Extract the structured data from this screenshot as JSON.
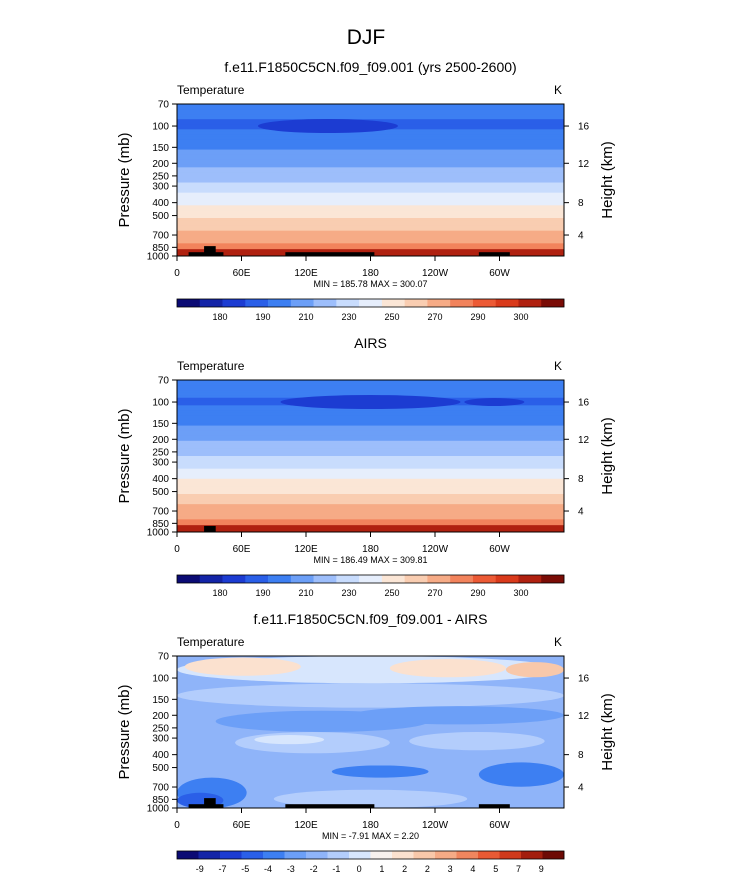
{
  "page": {
    "title": "DJF"
  },
  "colors": {
    "temp_scale": [
      "#0b0b74",
      "#1324a7",
      "#1c3cd2",
      "#2a5fe8",
      "#3d7ff2",
      "#6c9ff7",
      "#9dbefb",
      "#c8dcfd",
      "#e6eefc",
      "#fbe6d6",
      "#f9cdb1",
      "#f6ab86",
      "#f2835c",
      "#ec5a35",
      "#d93a1b",
      "#b02110",
      "#7a0c06"
    ],
    "diff_scale": [
      "#0b0b74",
      "#1324a7",
      "#1c3cd2",
      "#2a5fe8",
      "#3d7ff2",
      "#6c9ff7",
      "#8fb4f9",
      "#b3cdfc",
      "#d7e6fd",
      "#f7f1ee",
      "#fbe1cf",
      "#f8c8aa",
      "#f5ab86",
      "#f0865e",
      "#e85a34",
      "#cf3a1b",
      "#a31e0d",
      "#6d0a05"
    ],
    "land": "#000000"
  },
  "chart_data": [
    {
      "type": "heatmap",
      "title": "f.e11.F1850C5CN.f09_f09.001 (yrs 2500-2600)",
      "left_label": "Temperature",
      "right_label": "K",
      "ylabel": "Pressure (mb)",
      "ylabel_right": "Height (km)",
      "x_ticks": [
        "0",
        "60E",
        "120E",
        "180",
        "120W",
        "60W"
      ],
      "y_ticks": [
        "70",
        "100",
        "150",
        "200",
        "250",
        "300",
        "400",
        "500",
        "700",
        "850",
        "1000"
      ],
      "y_ticks_right": [
        "16",
        "12",
        "8",
        "4"
      ],
      "stats": "MIN = 185.78  MAX = 300.07",
      "min": 185.78,
      "max": 300.07,
      "colorbar_labels": [
        "180",
        "190",
        "210",
        "230",
        "250",
        "270",
        "290",
        "300"
      ],
      "profile_p": [
        70,
        100,
        150,
        200,
        250,
        300,
        400,
        500,
        700,
        850,
        1000
      ],
      "profile_t": [
        205,
        198,
        208,
        218,
        226,
        233,
        248,
        258,
        274,
        282,
        290
      ]
    },
    {
      "type": "heatmap",
      "title": "AIRS",
      "left_label": "Temperature",
      "right_label": "K",
      "ylabel": "Pressure (mb)",
      "ylabel_right": "Height (km)",
      "x_ticks": [
        "0",
        "60E",
        "120E",
        "180",
        "120W",
        "60W"
      ],
      "y_ticks": [
        "70",
        "100",
        "150",
        "200",
        "250",
        "300",
        "400",
        "500",
        "700",
        "850",
        "1000"
      ],
      "y_ticks_right": [
        "16",
        "12",
        "8",
        "4"
      ],
      "stats": "MIN = 186.49  MAX = 309.81",
      "min": 186.49,
      "max": 309.81,
      "colorbar_labels": [
        "180",
        "190",
        "210",
        "230",
        "250",
        "270",
        "290",
        "300"
      ],
      "profile_p": [
        70,
        100,
        150,
        200,
        250,
        300,
        400,
        500,
        700,
        850,
        1000
      ],
      "profile_t": [
        206,
        199,
        209,
        219,
        226,
        234,
        249,
        259,
        275,
        283,
        292
      ]
    },
    {
      "type": "heatmap",
      "title": "f.e11.F1850C5CN.f09_f09.001 - AIRS",
      "left_label": "Temperature",
      "right_label": "K",
      "ylabel": "Pressure (mb)",
      "ylabel_right": "Height (km)",
      "x_ticks": [
        "0",
        "60E",
        "120E",
        "180",
        "120W",
        "60W"
      ],
      "y_ticks": [
        "70",
        "100",
        "150",
        "200",
        "250",
        "300",
        "400",
        "500",
        "700",
        "850",
        "1000"
      ],
      "y_ticks_right": [
        "16",
        "12",
        "8",
        "4"
      ],
      "stats": "MIN =  -7.91  MAX =   2.20",
      "min": -7.91,
      "max": 2.2,
      "colorbar_labels": [
        "-9",
        "-7",
        "-5",
        "-4",
        "-3",
        "-2",
        "-1",
        "0",
        "1",
        "2",
        "2",
        "3",
        "4",
        "5",
        "7",
        "9"
      ]
    }
  ]
}
